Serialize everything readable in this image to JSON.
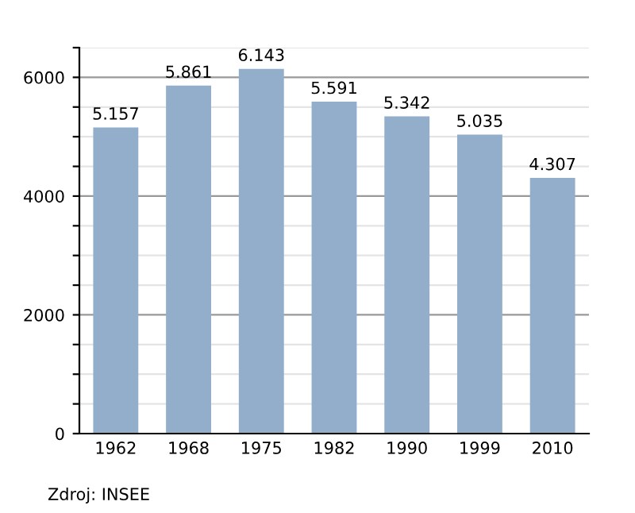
{
  "chart_data": {
    "type": "bar",
    "categories": [
      "1962",
      "1968",
      "1975",
      "1982",
      "1990",
      "1999",
      "2010"
    ],
    "values": [
      5157,
      5861,
      6143,
      5591,
      5342,
      5035,
      4307
    ],
    "value_labels": [
      "5.157",
      "5.861",
      "6.143",
      "5.591",
      "5.342",
      "5.035",
      "4.307"
    ],
    "color": "#93aecb",
    "ylim": [
      0,
      6500
    ],
    "yticks": [
      0,
      {
        "value": 500,
        "label": null
      },
      {
        "value": 1000,
        "label": null
      },
      {
        "value": 1500,
        "label": null
      },
      2000,
      {
        "value": 2500,
        "label": null
      },
      {
        "value": 3000,
        "label": null
      },
      {
        "value": 3500,
        "label": null
      },
      4000,
      {
        "value": 4500,
        "label": null
      },
      {
        "value": 5000,
        "label": null
      },
      {
        "value": 5500,
        "label": null
      },
      6000,
      {
        "value": 6500,
        "label": null
      }
    ],
    "grid": "y",
    "annotations": [
      "Zdroj: INSEE"
    ]
  }
}
